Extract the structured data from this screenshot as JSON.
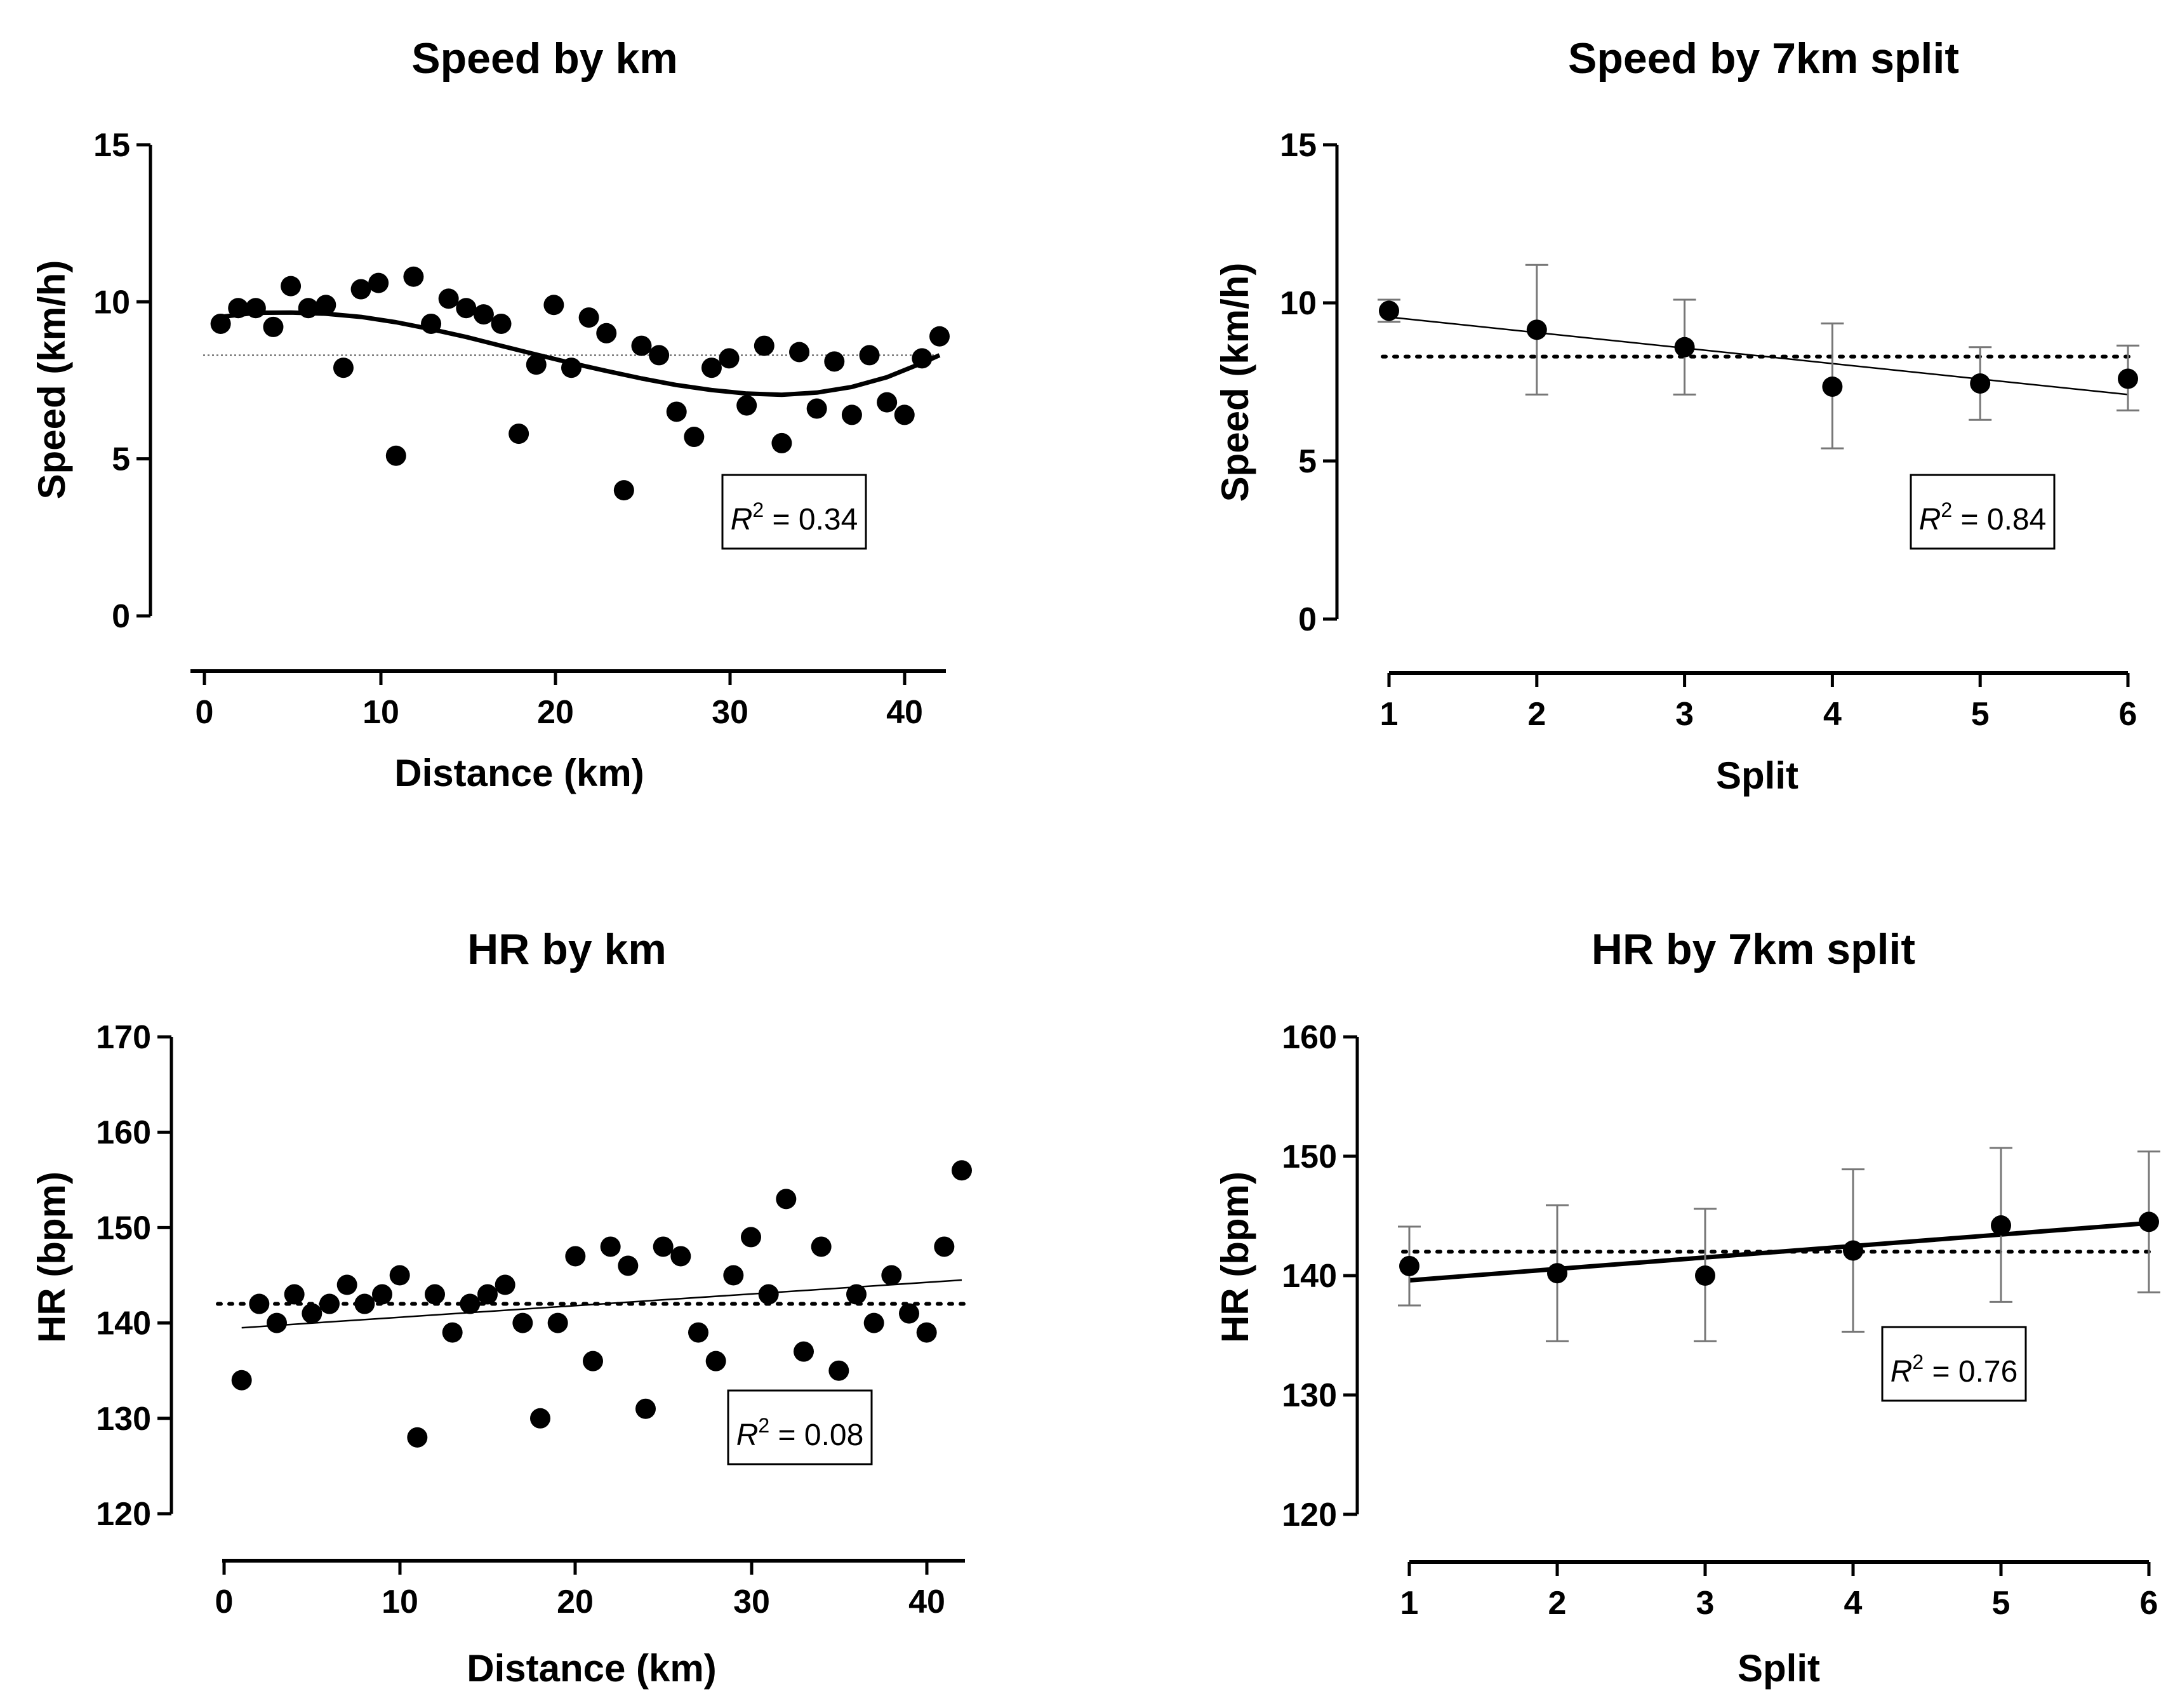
{
  "chart_data": [
    {
      "id": "speed-km",
      "type": "scatter",
      "title": "Speed by km",
      "xlabel": "Distance (km)",
      "ylabel": "Speed (km/h)",
      "xlim": [
        0,
        42
      ],
      "ylim": [
        0,
        15
      ],
      "xticks": [
        0,
        10,
        20,
        30,
        40
      ],
      "yticks": [
        0,
        5,
        10,
        15
      ],
      "x": [
        1,
        2,
        3,
        4,
        5,
        6,
        7,
        8,
        9,
        10,
        11,
        12,
        13,
        14,
        15,
        16,
        17,
        18,
        19,
        20,
        21,
        22,
        23,
        24,
        25,
        26,
        27,
        28,
        29,
        30,
        31,
        32,
        33,
        34,
        35,
        36,
        37,
        38,
        39,
        40,
        41,
        42
      ],
      "y": [
        9.3,
        9.8,
        9.8,
        9.2,
        10.5,
        9.8,
        9.9,
        7.9,
        10.4,
        10.6,
        5.1,
        10.8,
        9.3,
        10.1,
        9.8,
        9.6,
        9.3,
        5.8,
        8.0,
        9.9,
        7.9,
        9.5,
        9.0,
        4.0,
        8.6,
        8.3,
        6.5,
        5.7,
        7.9,
        8.2,
        6.7,
        8.6,
        5.5,
        8.4,
        6.6,
        8.1,
        6.4,
        8.3,
        6.8,
        6.4,
        8.2,
        8.9
      ],
      "mean_line": 8.3,
      "fit": {
        "type": "polynomial",
        "x": [
          1,
          3,
          5,
          7,
          9,
          11,
          13,
          15,
          17,
          19,
          21,
          23,
          25,
          27,
          29,
          31,
          33,
          35,
          37,
          39,
          41,
          42
        ],
        "y": [
          9.52,
          9.65,
          9.66,
          9.62,
          9.52,
          9.35,
          9.13,
          8.88,
          8.6,
          8.32,
          8.05,
          7.8,
          7.56,
          7.35,
          7.19,
          7.08,
          7.04,
          7.11,
          7.29,
          7.6,
          8.05,
          8.3
        ]
      },
      "r2_label": "R",
      "r2_sup": "2",
      "r2_value": " = 0.34"
    },
    {
      "id": "speed-split",
      "type": "scatter",
      "title": "Speed by 7km split",
      "xlabel": "Split",
      "ylabel": "Speed (km/h)",
      "xlim": [
        1,
        6
      ],
      "ylim": [
        0,
        15
      ],
      "xticks": [
        1,
        2,
        3,
        4,
        5,
        6
      ],
      "yticks": [
        0,
        5,
        10,
        15
      ],
      "x": [
        1,
        2,
        3,
        4,
        5,
        6
      ],
      "y": [
        9.75,
        9.15,
        8.6,
        7.35,
        7.45,
        7.6
      ],
      "err_low": [
        9.4,
        7.1,
        7.1,
        5.4,
        6.3,
        6.6
      ],
      "err_high": [
        10.1,
        11.2,
        10.1,
        9.35,
        8.6,
        8.65
      ],
      "mean_line": 8.3,
      "fit": {
        "type": "linear",
        "x": [
          1,
          6
        ],
        "y": [
          9.55,
          7.1
        ]
      },
      "r2_label": "R",
      "r2_sup": "2",
      "r2_value": " = 0.84"
    },
    {
      "id": "hr-km",
      "type": "scatter",
      "title": "HR by km",
      "xlabel": "Distance (km)",
      "ylabel": "HR (bpm)",
      "xlim": [
        0,
        42
      ],
      "ylim": [
        120,
        170
      ],
      "xticks": [
        0,
        10,
        20,
        30,
        40
      ],
      "yticks": [
        120,
        130,
        140,
        150,
        160,
        170
      ],
      "x": [
        1,
        2,
        3,
        4,
        5,
        6,
        7,
        8,
        9,
        10,
        11,
        12,
        13,
        14,
        15,
        16,
        17,
        18,
        19,
        20,
        21,
        22,
        23,
        24,
        25,
        26,
        27,
        28,
        29,
        30,
        31,
        32,
        33,
        34,
        35,
        36,
        37,
        38,
        39,
        40,
        41,
        42
      ],
      "y": [
        134,
        142,
        140,
        143,
        141,
        142,
        144,
        142,
        143,
        145,
        128,
        143,
        139,
        142,
        143,
        144,
        140,
        130,
        140,
        147,
        136,
        148,
        146,
        131,
        148,
        147,
        139,
        136,
        145,
        149,
        143,
        153,
        137,
        148,
        135,
        143,
        140,
        145,
        141,
        139,
        148,
        156
      ],
      "mean_line": 142,
      "fit": {
        "type": "linear",
        "x": [
          1,
          42
        ],
        "y": [
          139.5,
          144.5
        ]
      },
      "r2_label": "R",
      "r2_sup": "2",
      "r2_value": " = 0.08"
    },
    {
      "id": "hr-split",
      "type": "scatter",
      "title": "HR by 7km split",
      "xlabel": "Split",
      "ylabel": "HR (bpm)",
      "xlim": [
        1,
        6
      ],
      "ylim": [
        120,
        160
      ],
      "xticks": [
        1,
        2,
        3,
        4,
        5,
        6
      ],
      "yticks": [
        120,
        130,
        140,
        150,
        160
      ],
      "x": [
        1,
        2,
        3,
        4,
        5,
        6
      ],
      "y": [
        140.8,
        140.2,
        140,
        142.1,
        144.2,
        144.5
      ],
      "err_low": [
        137.5,
        134.5,
        134.5,
        135.3,
        137.8,
        138.6
      ],
      "err_high": [
        144.1,
        145.9,
        145.6,
        148.9,
        150.7,
        150.4
      ],
      "mean_line": 142,
      "fit": {
        "type": "linear",
        "x": [
          1,
          6
        ],
        "y": [
          139.6,
          144.4
        ]
      },
      "r2_label": "R",
      "r2_sup": "2",
      "r2_value": " = 0.76"
    }
  ]
}
